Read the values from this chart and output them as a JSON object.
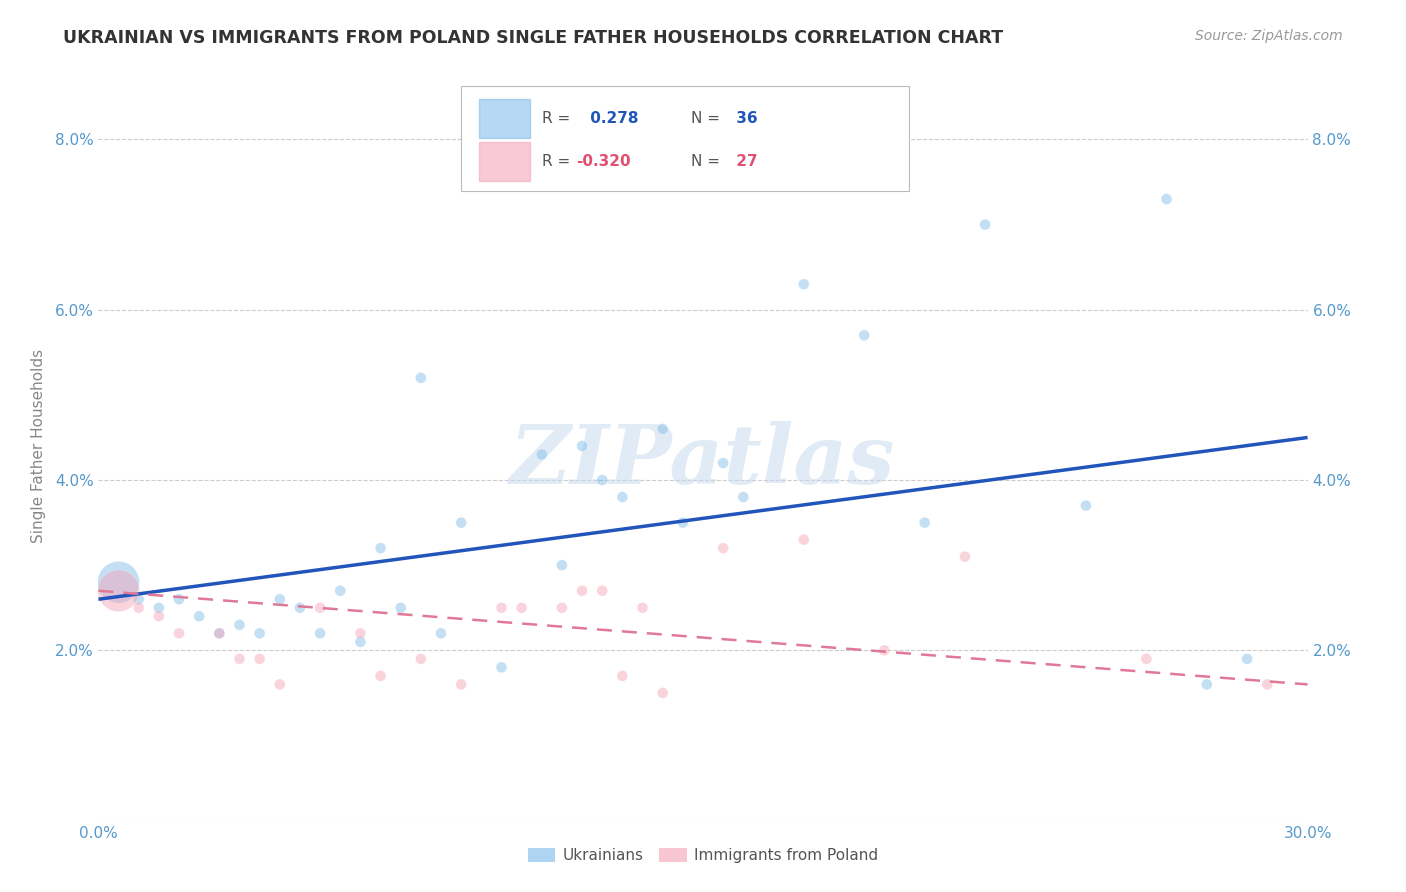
{
  "title": "UKRAINIAN VS IMMIGRANTS FROM POLAND SINGLE FATHER HOUSEHOLDS CORRELATION CHART",
  "source": "Source: ZipAtlas.com",
  "ylabel": "Single Father Households",
  "watermark": "ZIPatlas",
  "xlim": [
    0.0,
    0.3
  ],
  "ylim": [
    0.0,
    0.088
  ],
  "xticks": [
    0.0,
    0.05,
    0.1,
    0.15,
    0.2,
    0.25,
    0.3
  ],
  "yticks": [
    0.0,
    0.02,
    0.04,
    0.06,
    0.08
  ],
  "ytick_labels": [
    "",
    "2.0%",
    "4.0%",
    "6.0%",
    "8.0%"
  ],
  "xtick_labels": [
    "0.0%",
    "",
    "",
    "",
    "",
    "",
    "30.0%"
  ],
  "blue_R": 0.278,
  "blue_N": 36,
  "pink_R": -0.32,
  "pink_N": 27,
  "blue_color": "#7ab8e8",
  "pink_color": "#f4a0b5",
  "blue_line_color": "#2255bb",
  "pink_line_color": "#e07898",
  "grid_color": "#cccccc",
  "title_color": "#333333",
  "tick_color": "#5599cc",
  "blue_scatter_x": [
    0.005,
    0.01,
    0.015,
    0.02,
    0.025,
    0.03,
    0.035,
    0.04,
    0.045,
    0.05,
    0.055,
    0.06,
    0.065,
    0.07,
    0.075,
    0.08,
    0.085,
    0.09,
    0.1,
    0.11,
    0.115,
    0.12,
    0.125,
    0.13,
    0.14,
    0.145,
    0.155,
    0.16,
    0.175,
    0.19,
    0.205,
    0.22,
    0.245,
    0.265,
    0.275,
    0.285
  ],
  "blue_scatter_y": [
    0.028,
    0.026,
    0.025,
    0.026,
    0.024,
    0.022,
    0.023,
    0.022,
    0.026,
    0.025,
    0.022,
    0.027,
    0.021,
    0.032,
    0.025,
    0.052,
    0.022,
    0.035,
    0.018,
    0.043,
    0.03,
    0.044,
    0.04,
    0.038,
    0.046,
    0.035,
    0.042,
    0.038,
    0.063,
    0.057,
    0.035,
    0.07,
    0.037,
    0.073,
    0.016,
    0.019
  ],
  "blue_scatter_size": [
    900,
    60,
    60,
    60,
    60,
    60,
    60,
    60,
    60,
    60,
    60,
    60,
    60,
    60,
    60,
    60,
    60,
    60,
    60,
    60,
    60,
    60,
    60,
    60,
    60,
    60,
    60,
    60,
    60,
    60,
    60,
    60,
    60,
    60,
    60,
    60
  ],
  "pink_scatter_x": [
    0.005,
    0.01,
    0.015,
    0.02,
    0.03,
    0.035,
    0.04,
    0.045,
    0.055,
    0.065,
    0.07,
    0.08,
    0.09,
    0.1,
    0.105,
    0.115,
    0.12,
    0.125,
    0.13,
    0.135,
    0.14,
    0.155,
    0.175,
    0.195,
    0.215,
    0.26,
    0.29
  ],
  "pink_scatter_y": [
    0.027,
    0.025,
    0.024,
    0.022,
    0.022,
    0.019,
    0.019,
    0.016,
    0.025,
    0.022,
    0.017,
    0.019,
    0.016,
    0.025,
    0.025,
    0.025,
    0.027,
    0.027,
    0.017,
    0.025,
    0.015,
    0.032,
    0.033,
    0.02,
    0.031,
    0.019,
    0.016
  ],
  "pink_scatter_size": [
    900,
    60,
    60,
    60,
    60,
    60,
    60,
    60,
    60,
    60,
    60,
    60,
    60,
    60,
    60,
    60,
    60,
    60,
    60,
    60,
    60,
    60,
    60,
    60,
    60,
    60,
    60
  ],
  "blue_line_x": [
    0.0,
    0.3
  ],
  "blue_line_y": [
    0.026,
    0.045
  ],
  "pink_line_x": [
    0.0,
    0.3
  ],
  "pink_line_y": [
    0.027,
    0.016
  ]
}
